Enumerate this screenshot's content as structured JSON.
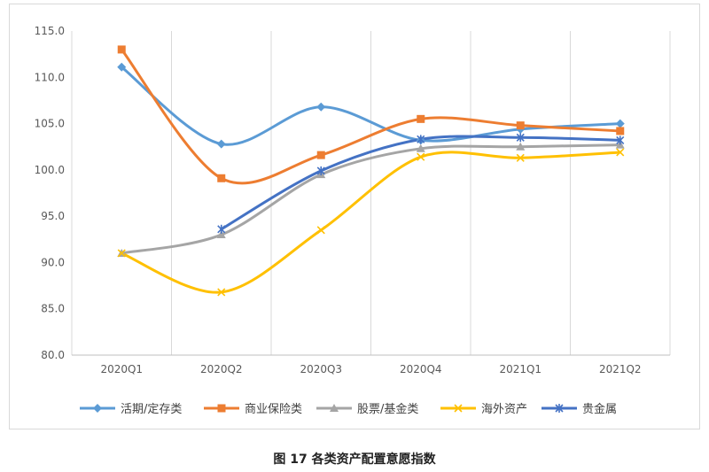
{
  "caption": "图 17 各类资产配置意愿指数",
  "chart_data": {
    "type": "line",
    "title": "",
    "xlabel": "",
    "ylabel": "",
    "categories": [
      "2020Q1",
      "2020Q2",
      "2020Q3",
      "2020Q4",
      "2021Q1",
      "2021Q2"
    ],
    "yticks": [
      "80.0",
      "85.0",
      "90.0",
      "95.0",
      "100.0",
      "105.0",
      "110.0",
      "115.0"
    ],
    "ylim": [
      80,
      115
    ],
    "grid": "vertical",
    "legend_position": "bottom",
    "smooth": true,
    "series": [
      {
        "name": "活期/定存类",
        "values": [
          111.1,
          102.8,
          106.8,
          103.2,
          104.4,
          105.0
        ],
        "color": "#5b9bd5",
        "marker": "diamond"
      },
      {
        "name": "商业保险类",
        "values": [
          113.0,
          99.1,
          101.6,
          105.5,
          104.8,
          104.2
        ],
        "color": "#ed7d31",
        "marker": "square"
      },
      {
        "name": "股票/基金类",
        "values": [
          91.0,
          93.0,
          99.5,
          102.3,
          102.5,
          102.7
        ],
        "color": "#a5a5a5",
        "marker": "triangle"
      },
      {
        "name": "海外资产",
        "values": [
          91.0,
          86.8,
          93.5,
          101.4,
          101.3,
          101.9
        ],
        "color": "#ffc000",
        "marker": "x"
      },
      {
        "name": "贵金属",
        "values": [
          null,
          93.6,
          99.9,
          103.3,
          103.5,
          103.2
        ],
        "color": "#4472c4",
        "marker": "star"
      }
    ]
  }
}
